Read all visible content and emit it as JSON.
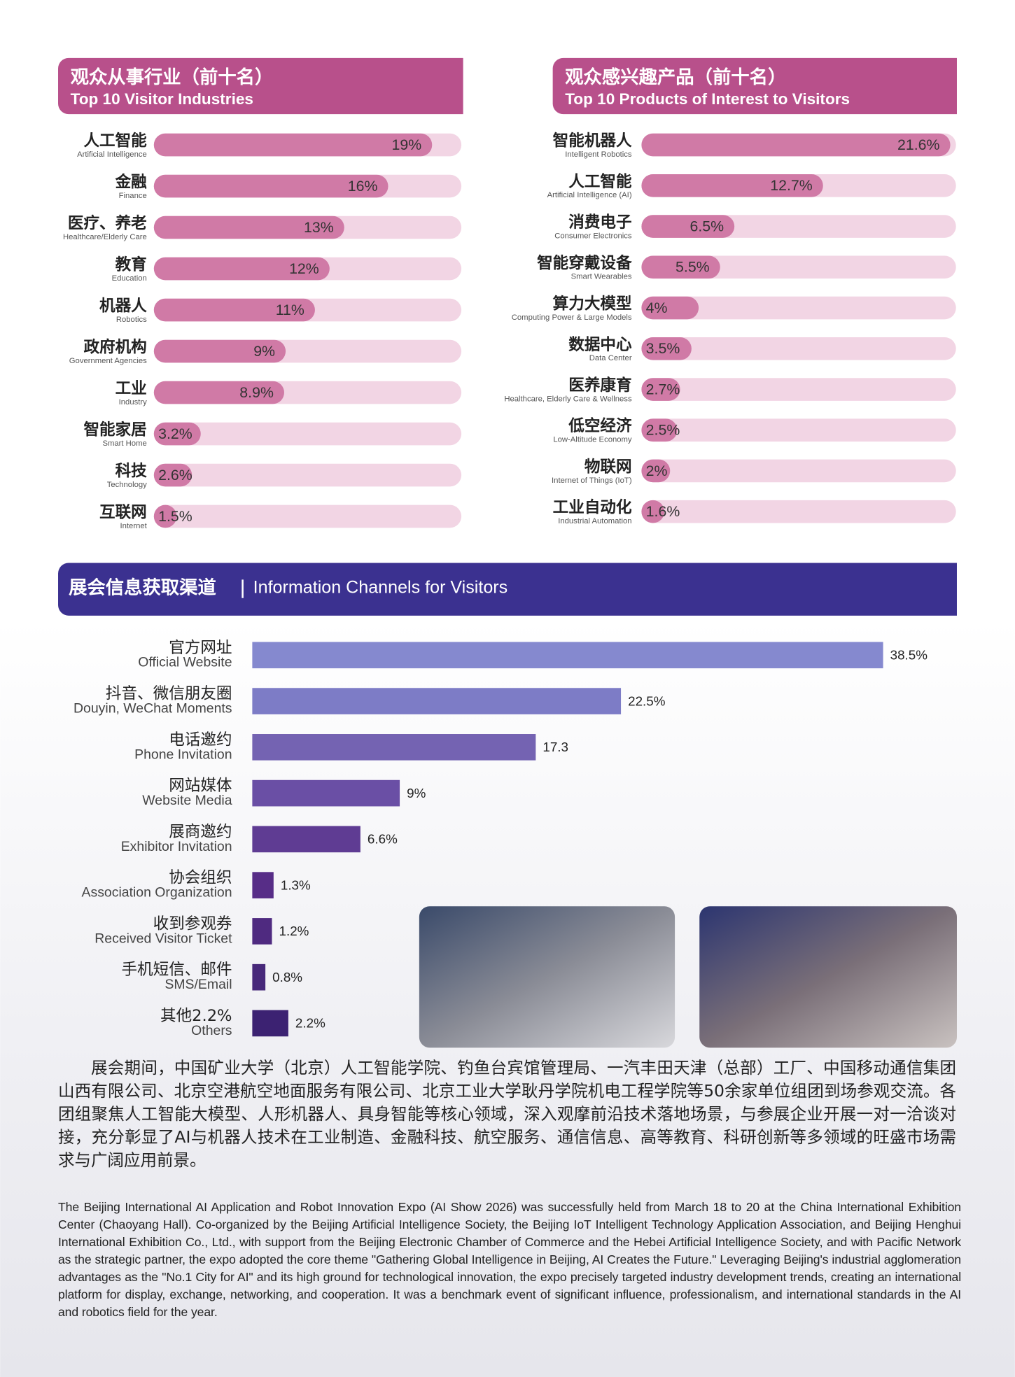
{
  "chart_data": [
    {
      "type": "bar",
      "title": "观众从事行业（前十名）",
      "subtitle": "Top 10 Visitor Industries",
      "header_color": "#b8508b",
      "categories": [
        "人工智能",
        "金融",
        "医疗、养老",
        "教育",
        "机器人",
        "政府机构",
        "工业",
        "智能家居",
        "科技",
        "互联网"
      ],
      "categories_en": [
        "Artificial Intelligence",
        "Finance",
        "Healthcare/Elderly Care",
        "Education",
        "Robotics",
        "Government Agencies",
        "Industry",
        "Smart Home",
        "Technology",
        "Internet"
      ],
      "values": [
        19,
        16,
        13,
        12,
        11,
        9,
        8.9,
        3.2,
        2.6,
        1.5
      ],
      "value_labels": [
        "19%",
        "16%",
        "13%",
        "12%",
        "11%",
        "9%",
        "8.9%",
        "3.2%",
        "2.6%",
        "1.5%"
      ],
      "color": "#d07aa6",
      "track_color": "#f2d5e4",
      "xlim": [
        0,
        21
      ]
    },
    {
      "type": "bar",
      "title": "观众感兴趣产品（前十名）",
      "subtitle": "Top 10 Products of Interest to Visitors",
      "header_color": "#b8508b",
      "categories": [
        "智能机器人",
        "人工智能",
        "消费电子",
        "智能穿戴设备",
        "算力大模型",
        "数据中心",
        "医养康育",
        "低空经济",
        "物联网",
        "工业自动化"
      ],
      "categories_en": [
        "Intelligent Robotics",
        "Artificial Intelligence (AI)",
        "Consumer Electronics",
        "Smart Wearables",
        "Computing Power & Large Models",
        "Data Center",
        "Healthcare, Elderly Care & Wellness",
        "Low-Altitude Economy",
        "Internet of Things (IoT)",
        "Industrial Automation"
      ],
      "values": [
        21.6,
        12.7,
        6.5,
        5.5,
        4,
        3.5,
        2.7,
        2.5,
        2,
        1.6
      ],
      "value_labels": [
        "21.6%",
        "12.7%",
        "6.5%",
        "5.5%",
        "4%",
        "3.5%",
        "2.7%",
        "2.5%",
        "2%",
        "1.6%"
      ],
      "color": "#d07aa6",
      "track_color": "#f2d5e4",
      "xlim": [
        0,
        22
      ]
    },
    {
      "type": "bar",
      "title": "展会信息获取渠道",
      "subtitle": "Information Channels for Visitors",
      "header_color": "#3b3190",
      "categories": [
        "官方网址",
        "抖音、微信朋友圈",
        "电话邀约",
        "网站媒体",
        "展商邀约",
        "协会组织",
        "收到参观券",
        "手机短信、邮件",
        "其他2.2%"
      ],
      "categories_en": [
        "Official Website",
        "Douyin, WeChat Moments",
        "Phone Invitation",
        "Website Media",
        "Exhibitor Invitation",
        "Association Organization",
        "Received Visitor Ticket",
        "SMS/Email",
        "Others"
      ],
      "values": [
        38.5,
        22.5,
        17.3,
        9,
        6.6,
        1.3,
        1.2,
        0.8,
        2.2
      ],
      "value_labels": [
        "38.5%",
        "22.5%",
        "17.3",
        "9%",
        "6.6%",
        "1.3%",
        "1.2%",
        "0.8%",
        "2.2%"
      ],
      "colors": [
        "#8589cf",
        "#7d7cc6",
        "#7463b2",
        "#6a4fa5",
        "#5f3c93",
        "#572d87",
        "#4f2a80",
        "#47287a",
        "#3c2272"
      ],
      "xlim": [
        0,
        40
      ]
    }
  ],
  "paragraphs": {
    "zh": "展会期间，中国矿业大学（北京）人工智能学院、钓鱼台宾馆管理局、一汽丰田天津（总部）工厂、中国移动通信集团山西有限公司、北京空港航空地面服务有限公司、北京工业大学耿丹学院机电工程学院等50余家单位组团到场参观交流。各团组聚焦人工智能大模型、人形机器人、具身智能等核心领域，深入观摩前沿技术落地场景，与参展企业开展一对一洽谈对接，充分彰显了AI与机器人技术在工业制造、金融科技、航空服务、通信信息、高等教育、科研创新等多领域的旺盛市场需求与广阔应用前景。",
    "en": "The Beijing International AI Application and Robot Innovation Expo (AI Show 2026) was successfully held from March 18 to 20 at the China International Exhibition Center (Chaoyang Hall). Co-organized by the Beijing Artificial Intelligence Society, the Beijing IoT Intelligent Technology Application Association, and Beijing Henghui International Exhibition Co., Ltd., with support from the Beijing Electronic Chamber of Commerce and the Hebei Artificial Intelligence Society, and with Pacific Network as the strategic partner, the expo adopted the core theme \"Gathering Global Intelligence in Beijing, AI Creates the Future.\" Leveraging Beijing's industrial agglomeration advantages as the \"No.1 City for AI\" and its high ground for technological innovation, the expo precisely targeted industry development trends, creating an international platform for display, exchange, networking, and cooperation. It was a benchmark event of significant influence, professionalism, and international standards in the AI and robotics field for the year."
  }
}
